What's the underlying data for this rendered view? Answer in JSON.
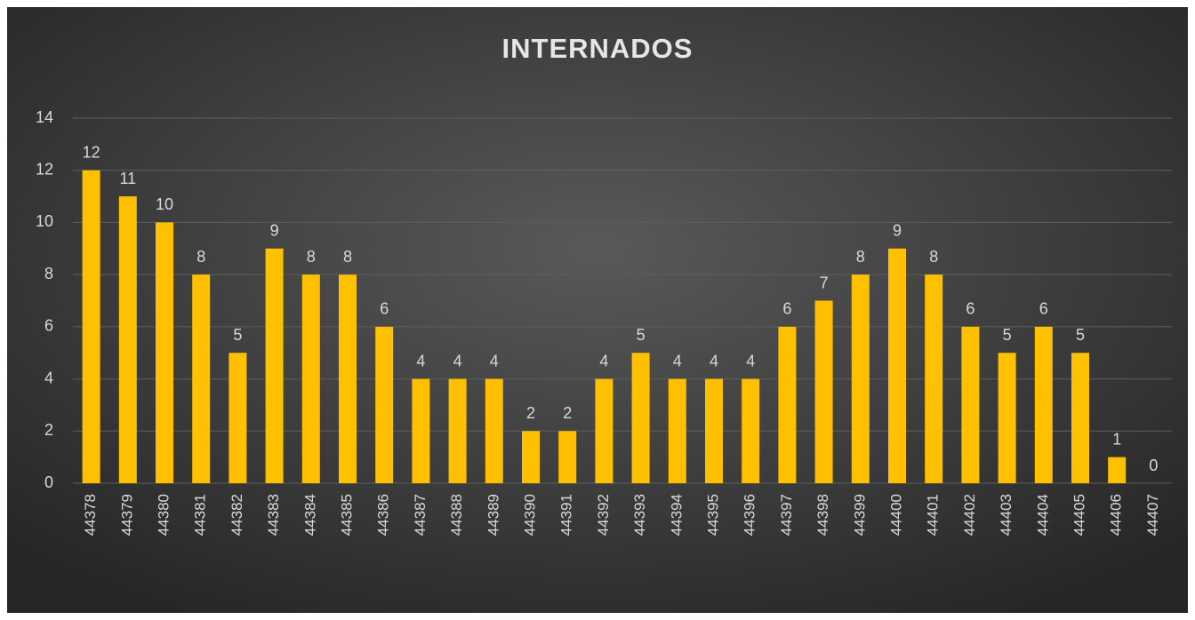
{
  "chart_data": {
    "type": "bar",
    "title": "INTERNADOS",
    "categories": [
      "44378",
      "44379",
      "44380",
      "44381",
      "44382",
      "44383",
      "44384",
      "44385",
      "44386",
      "44387",
      "44388",
      "44389",
      "44390",
      "44391",
      "44392",
      "44393",
      "44394",
      "44395",
      "44396",
      "44397",
      "44398",
      "44399",
      "44400",
      "44401",
      "44402",
      "44403",
      "44404",
      "44405",
      "44406",
      "44407"
    ],
    "values": [
      12,
      11,
      10,
      8,
      5,
      9,
      8,
      8,
      6,
      4,
      4,
      4,
      2,
      2,
      4,
      5,
      4,
      4,
      4,
      6,
      7,
      8,
      9,
      8,
      6,
      5,
      6,
      5,
      1,
      0
    ],
    "color": "#ffc000",
    "ylim": [
      0,
      14
    ],
    "yticks": [
      0,
      2,
      4,
      6,
      8,
      10,
      12,
      14
    ],
    "grid": true
  }
}
